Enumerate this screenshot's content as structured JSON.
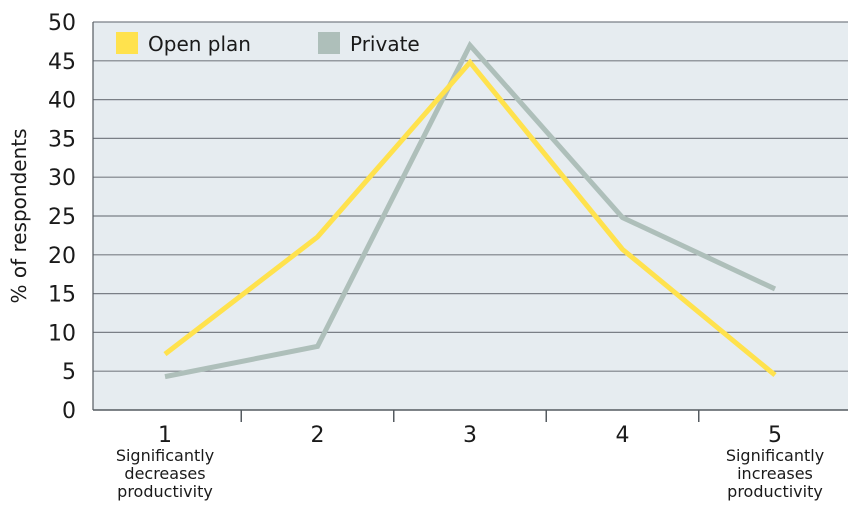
{
  "chart_data": {
    "type": "line",
    "categories": [
      "1",
      "2",
      "3",
      "4",
      "5"
    ],
    "category_descriptions": {
      "1": [
        "Significantly",
        "decreases",
        "productivity"
      ],
      "5": [
        "Significantly",
        "increases",
        "productivity"
      ]
    },
    "series": [
      {
        "name": "Open plan",
        "values": [
          7.2,
          22.3,
          44.8,
          20.7,
          4.5
        ],
        "color": "#ffe24d"
      },
      {
        "name": "Private",
        "values": [
          4.3,
          8.2,
          47,
          24.8,
          15.6
        ],
        "color": "#aebfba"
      }
    ],
    "ylabel": "% of respondents",
    "ylim": [
      0,
      50
    ],
    "yticks": [
      0,
      5,
      10,
      15,
      20,
      25,
      30,
      35,
      40,
      45,
      50
    ],
    "grid": true,
    "legend_position": "top-left",
    "colors": {
      "plot_background": "#e6ecf0",
      "gridline": "#7a7f86",
      "axis": "#555b60"
    }
  }
}
